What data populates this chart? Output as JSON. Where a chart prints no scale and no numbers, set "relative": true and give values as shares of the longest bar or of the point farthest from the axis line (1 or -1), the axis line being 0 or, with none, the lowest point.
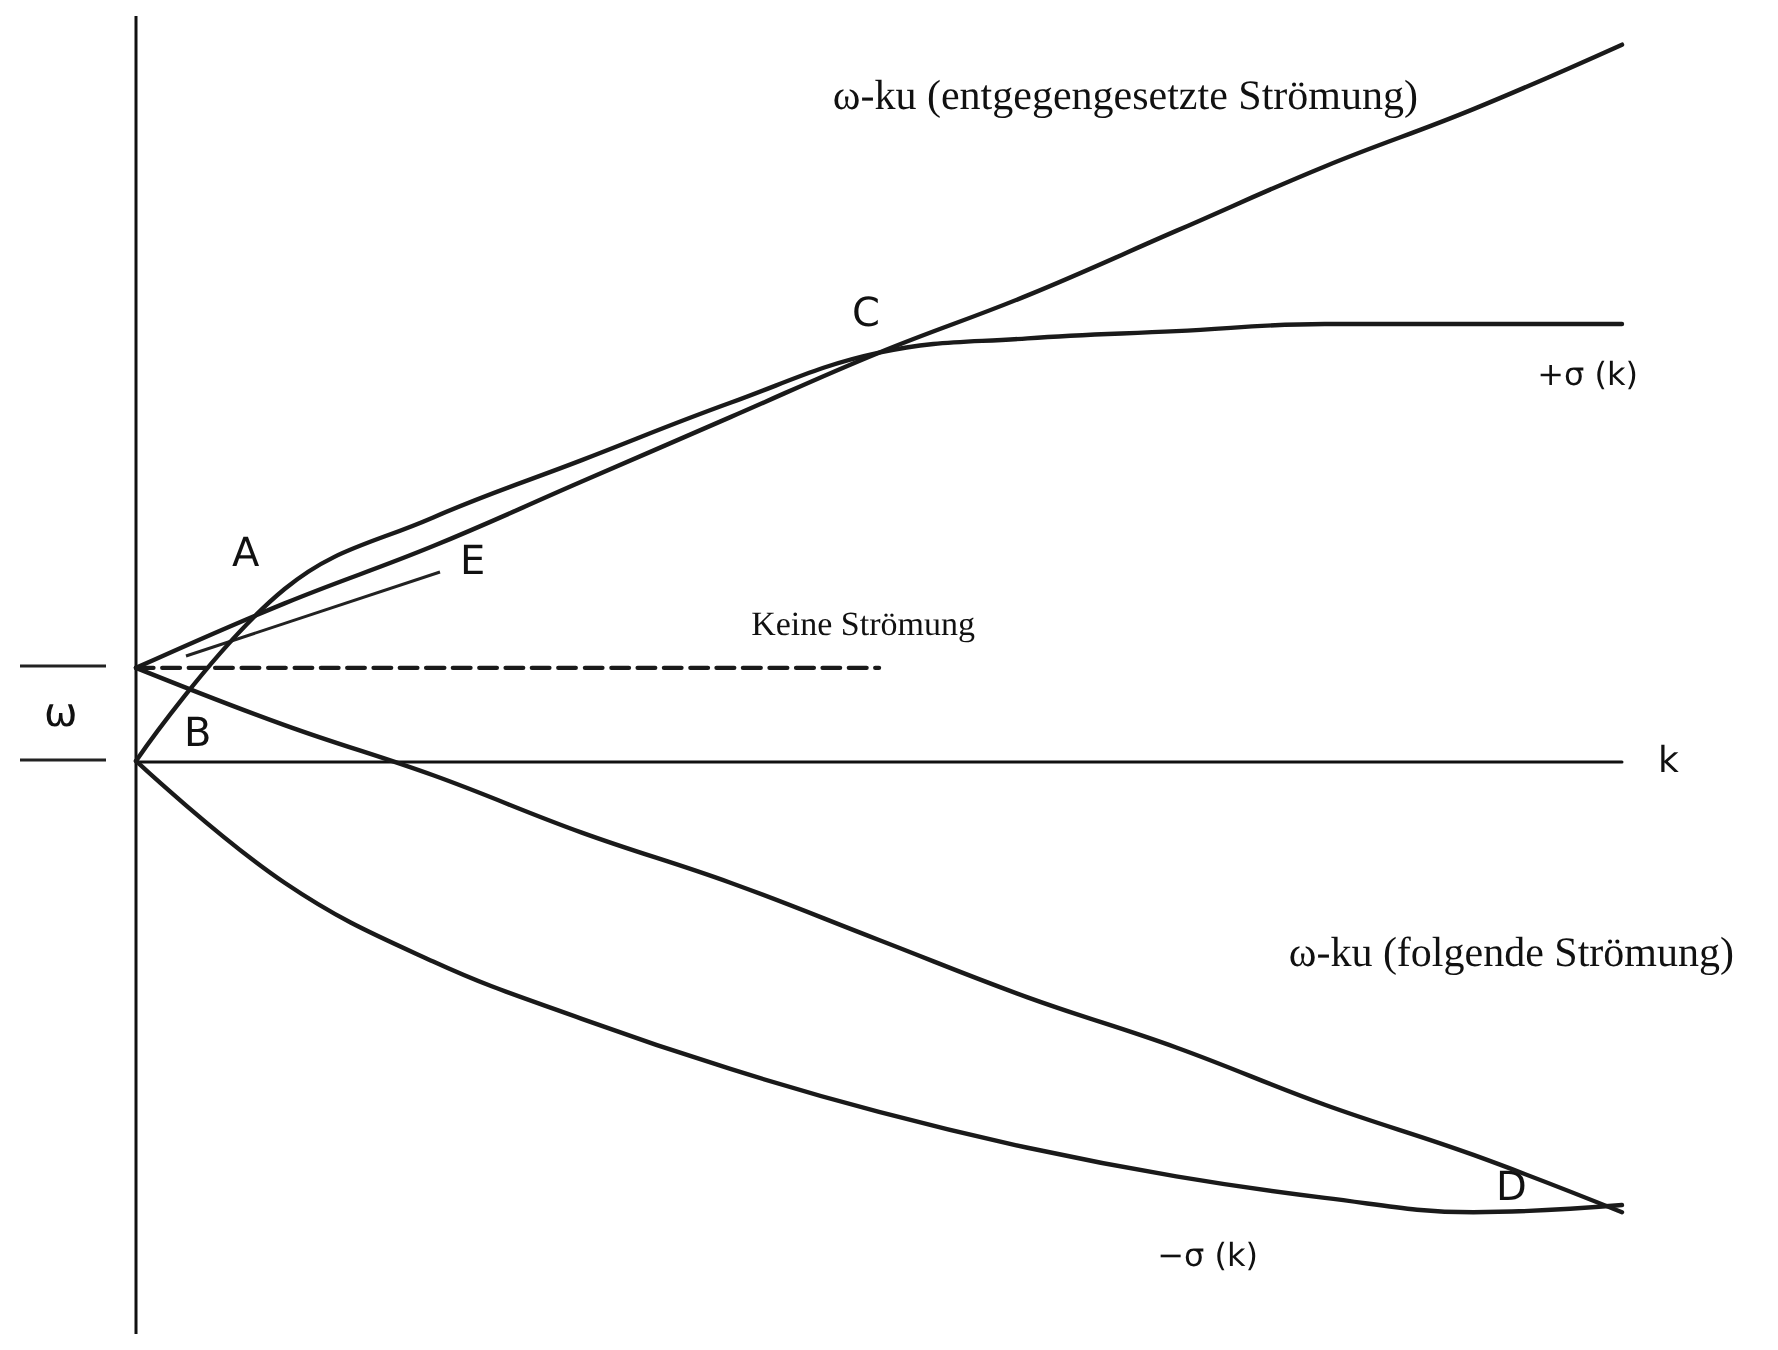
{
  "chart_data": {
    "type": "line",
    "relative": true,
    "xlabel": "k",
    "categories": [
      null,
      null,
      null,
      null,
      null,
      null,
      null,
      null,
      null,
      null,
      null
    ],
    "marker": "none",
    "grid": false,
    "legend": false,
    "series": [
      {
        "name": "ω-ku (entgegengesetzte Strömung)",
        "color": "#1a1a1a",
        "values": [
          0.13,
          0.22,
          0.3,
          0.39,
          0.48,
          0.57,
          0.65,
          0.74,
          0.83,
          0.91,
          1.0
        ]
      },
      {
        "name": "ω-ku (folgende Strömung)",
        "color": "#1a1a1a",
        "values": [
          0.13,
          0.05,
          -0.02,
          -0.1,
          -0.17,
          -0.25,
          -0.33,
          -0.4,
          -0.48,
          -0.55,
          -0.63
        ]
      },
      {
        "name": "+σ (k)",
        "color": "#1a1a1a",
        "values": [
          0,
          0.24,
          0.34,
          0.42,
          0.5,
          0.57,
          0.59,
          0.6,
          0.61,
          0.61,
          0.61
        ]
      },
      {
        "name": "−σ (k)",
        "color": "#1a1a1a",
        "values": [
          0,
          -0.17,
          -0.28,
          -0.36,
          -0.43,
          -0.49,
          -0.54,
          -0.58,
          -0.61,
          -0.63,
          -0.62
        ]
      },
      {
        "name": "Keine Strömung",
        "color": "#1a1a1a",
        "line_style": "dashed",
        "values": [
          0.13,
          0.13,
          0.13,
          0.13,
          0.13,
          0.13,
          null,
          null,
          null,
          null,
          null
        ]
      }
    ],
    "annotations": [
      "A",
      "B",
      "C",
      "D",
      "E",
      "ω"
    ]
  }
}
